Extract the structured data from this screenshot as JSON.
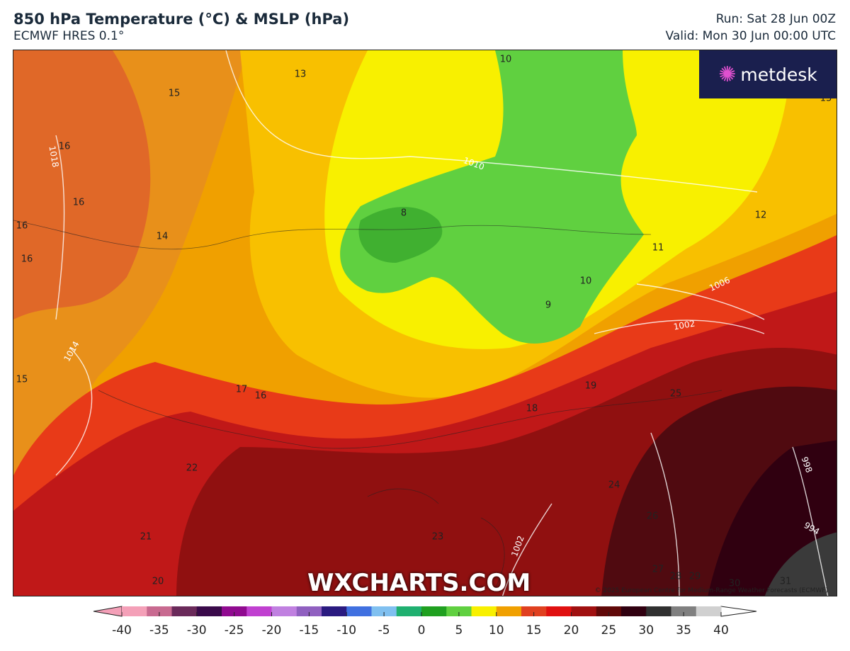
{
  "header": {
    "title": "850 hPa Temperature (°C) & MSLP (hPa)",
    "model": "ECMWF HRES 0.1°",
    "run": "Run: Sat 28 Jun 00Z",
    "valid": "Valid: Mon 30 Jun 00:00 UTC"
  },
  "logo": {
    "text": "metdesk",
    "icon": "starburst-icon"
  },
  "watermark": "WXCHARTS.COM",
  "copyright": "© 2025 European Centre for Medium-Range Weather Forecasts (ECMWF)",
  "temperature_labels": [
    "13",
    "15",
    "16",
    "16",
    "16",
    "16",
    "14",
    "10",
    "8",
    "11",
    "12",
    "10",
    "9",
    "15",
    "17",
    "16",
    "19",
    "18",
    "25",
    "22",
    "24",
    "26",
    "21",
    "23",
    "20",
    "27",
    "28",
    "29",
    "30",
    "31",
    "13"
  ],
  "pressure_labels": [
    "1018",
    "1010",
    "1014",
    "1006",
    "1002",
    "998",
    "994",
    "1002"
  ],
  "colorbar": {
    "unit": "°C",
    "ticks": [
      "-40",
      "-35",
      "-30",
      "-25",
      "-20",
      "-15",
      "-10",
      "-5",
      "0",
      "5",
      "10",
      "15",
      "20",
      "25",
      "30",
      "35",
      "40"
    ],
    "colors": [
      "#f4a0b8",
      "#c86a90",
      "#6a2a5a",
      "#3a0a4a",
      "#900a90",
      "#c040d0",
      "#c080e0",
      "#9060c0",
      "#2a1a80",
      "#4070e0",
      "#80c0f0",
      "#20b070",
      "#20a020",
      "#60d040",
      "#f8f000",
      "#f0a000",
      "#e04020",
      "#e01010",
      "#a01010",
      "#600808",
      "#300010",
      "#303030",
      "#808080",
      "#d0d0d0"
    ]
  }
}
